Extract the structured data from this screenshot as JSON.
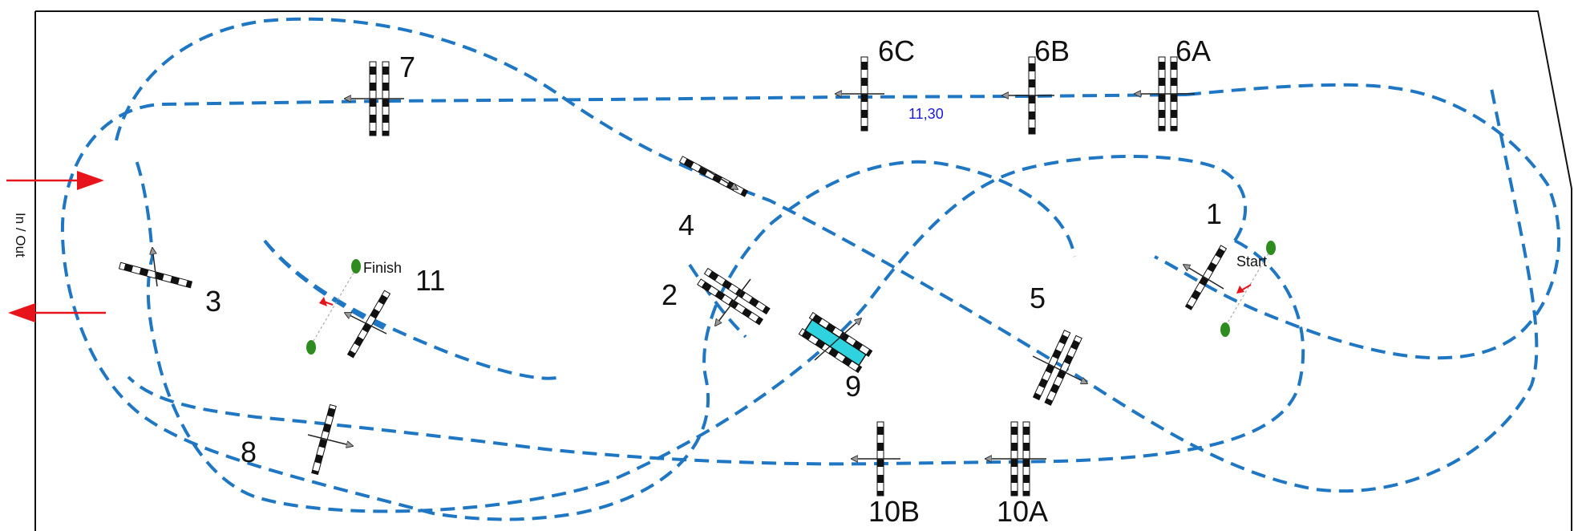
{
  "diagram": {
    "entry_label": "In / Out",
    "start_label": "Start",
    "finish_label": "Finish",
    "distance_note": "11,30",
    "gates": [
      {
        "id": "g1",
        "label": "1"
      },
      {
        "id": "g2",
        "label": "2"
      },
      {
        "id": "g3",
        "label": "3"
      },
      {
        "id": "g4",
        "label": "4"
      },
      {
        "id": "g5",
        "label": "5"
      },
      {
        "id": "g6a",
        "label": "6A"
      },
      {
        "id": "g6b",
        "label": "6B"
      },
      {
        "id": "g6c",
        "label": "6C"
      },
      {
        "id": "g7",
        "label": "7"
      },
      {
        "id": "g8",
        "label": "8"
      },
      {
        "id": "g9",
        "label": "9"
      },
      {
        "id": "g10a",
        "label": "10A"
      },
      {
        "id": "g10b",
        "label": "10B"
      },
      {
        "id": "g11",
        "label": "11"
      }
    ]
  },
  "colors": {
    "route": "#1f77c4",
    "entry_arrow": "#e8141b",
    "buoy": "#2e8b1f",
    "note_text": "#1a1adb",
    "highlight_gate": "#2fd3e0"
  },
  "icons": {
    "gate": "striped-gate-icon",
    "buoy": "green-buoy-icon",
    "arrow": "direction-arrow-icon"
  }
}
